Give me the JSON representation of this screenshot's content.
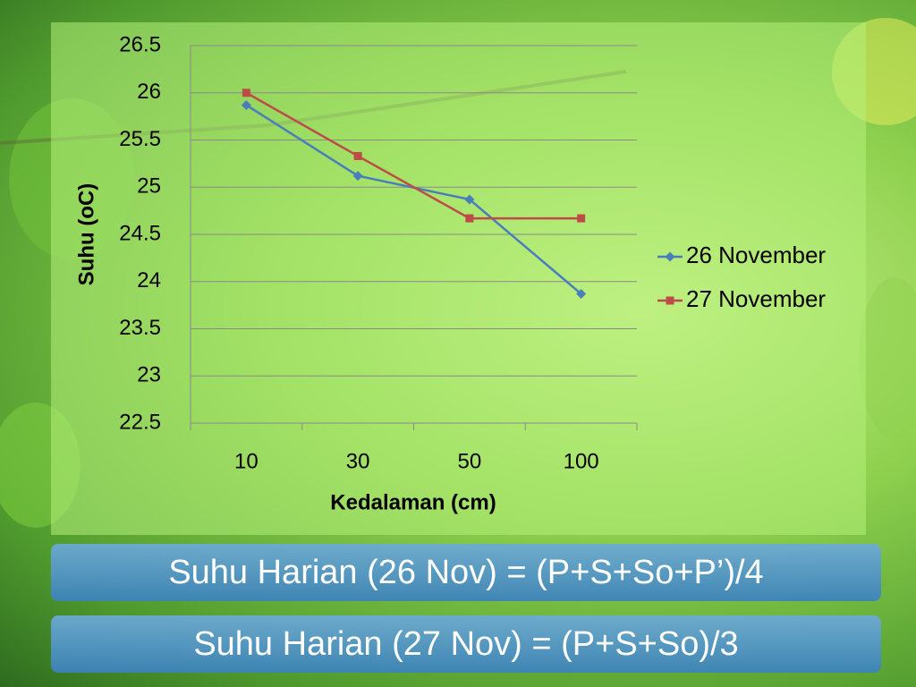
{
  "chart_data": {
    "type": "line",
    "x_label": "Kedalaman (cm)",
    "y_label": "Suhu (oC)",
    "categories": [
      "10",
      "30",
      "50",
      "100"
    ],
    "series": [
      {
        "name": "26 November",
        "color": "#4a7ebb",
        "marker": "diamond",
        "values": [
          25.87,
          25.12,
          24.87,
          23.87
        ]
      },
      {
        "name": "27 November",
        "color": "#be4b48",
        "marker": "square",
        "values": [
          26.0,
          25.33,
          24.67,
          24.67
        ]
      }
    ],
    "ylim": [
      22.5,
      26.5
    ],
    "yticks": [
      22.5,
      23,
      23.5,
      24,
      24.5,
      25,
      25.5,
      26,
      26.5
    ],
    "grid": true,
    "legend": "right"
  },
  "formulas": [
    "Suhu Harian (26 Nov) = (P+S+So+P’)/4",
    "Suhu Harian (27 Nov) = (P+S+So)/3"
  ]
}
